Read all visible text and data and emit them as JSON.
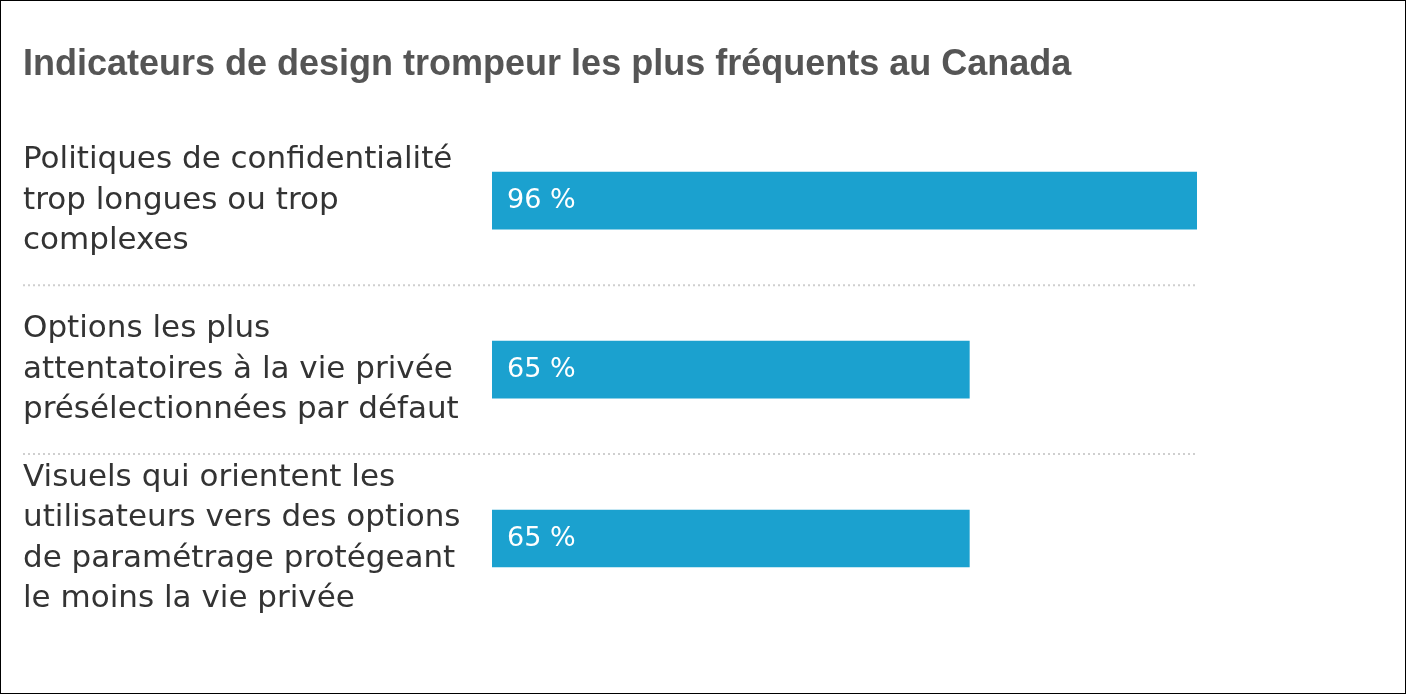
{
  "chart_data": {
    "type": "bar",
    "orientation": "horizontal",
    "title": "Indicateurs de design trompeur les plus fréquents au Canada",
    "categories": [
      "Politiques de confidentialité trop longues ou trop complexes",
      "Options les plus attentatoires à la vie privée présélectionnées par défaut",
      "Visuels qui orientent les utilisateurs vers des options de paramétrage protégeant le moins la vie privée"
    ],
    "values": [
      96,
      65,
      65
    ],
    "color": "#1ba1cf",
    "value_labels": [
      "96 %",
      "65 %",
      "65 %"
    ],
    "xlim": [
      0,
      96
    ],
    "tick_labels": "y",
    "grid": "y"
  }
}
